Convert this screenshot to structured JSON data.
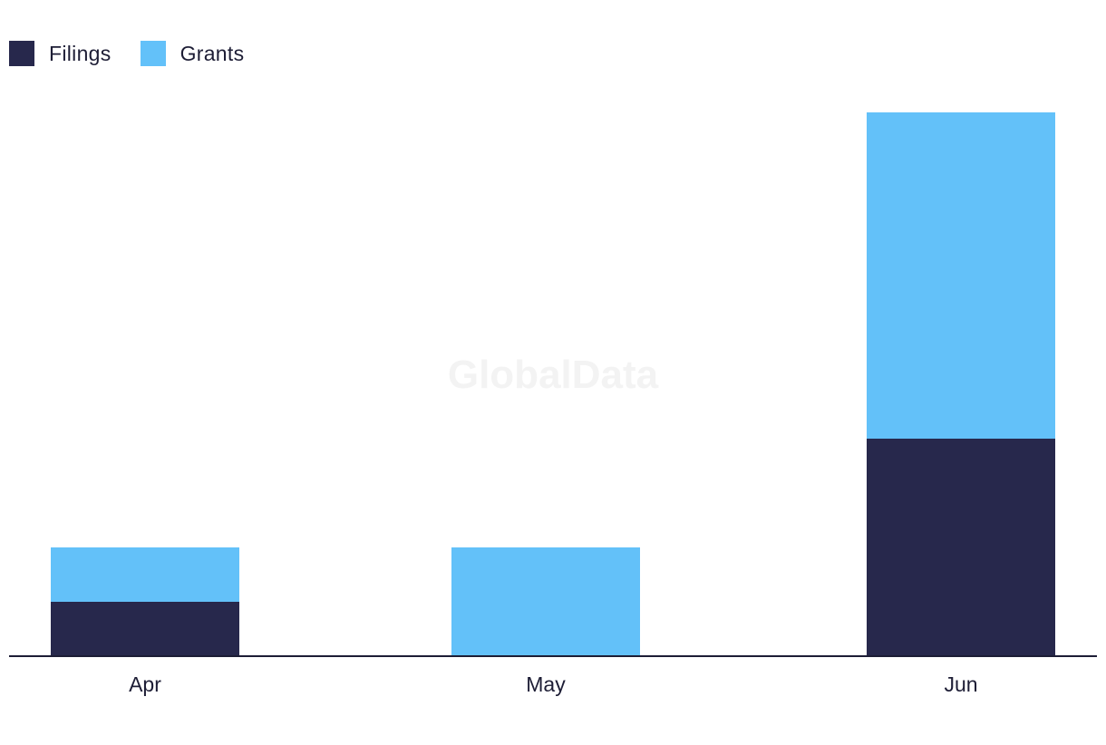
{
  "legend": [
    {
      "name": "Filings",
      "color": "#27284c"
    },
    {
      "name": "Grants",
      "color": "#63c1f9"
    }
  ],
  "watermark": "GlobalData",
  "chart_data": {
    "type": "bar",
    "stacked": true,
    "categories": [
      "Apr",
      "May",
      "Jun"
    ],
    "series": [
      {
        "name": "Filings",
        "values": [
          1,
          0,
          4
        ],
        "color": "#27284c"
      },
      {
        "name": "Grants",
        "values": [
          1,
          2,
          6
        ],
        "color": "#63c1f9"
      }
    ],
    "ylim": [
      0,
      10
    ],
    "grid": false,
    "legend_position": "top-left",
    "xlabel": "",
    "ylabel": ""
  }
}
